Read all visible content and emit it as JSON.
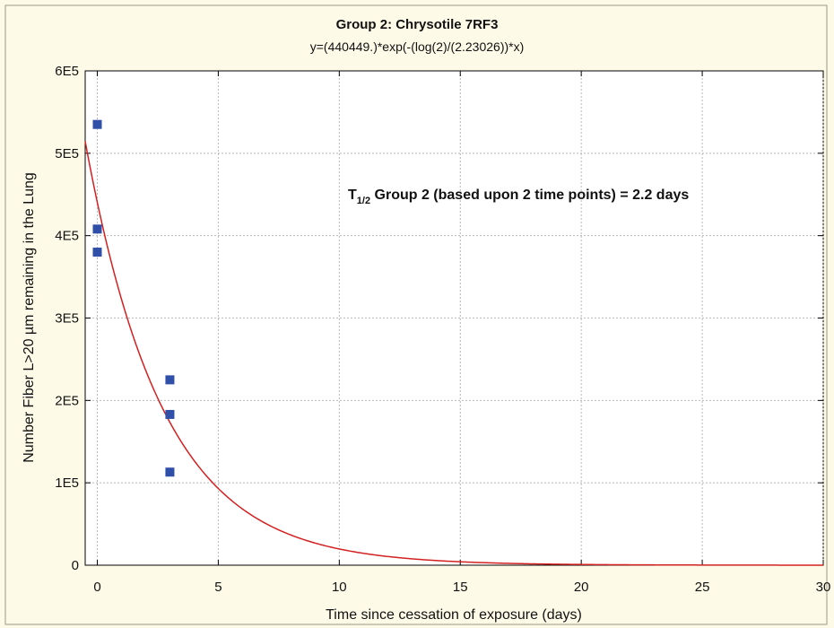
{
  "chart_data": {
    "type": "scatter",
    "title": "Group 2:  Chrysotile 7RF3",
    "subtitle": "y=(440449.)*exp(-(log(2)/(2.23026))*x)",
    "xlabel": "Time since cessation of exposure (days)",
    "ylabel": "Number Fiber L>20 µm remaining in the Lung",
    "xlim": [
      -0.5,
      30
    ],
    "ylim": [
      0,
      600000
    ],
    "x_ticks": [
      0,
      5,
      10,
      15,
      20,
      25,
      30
    ],
    "x_tick_labels": [
      "0",
      "5",
      "10",
      "15",
      "20",
      "25",
      "30"
    ],
    "y_ticks": [
      0,
      100000,
      200000,
      300000,
      400000,
      500000,
      600000
    ],
    "y_tick_labels": [
      "0",
      "1E5",
      "2E5",
      "3E5",
      "4E5",
      "5E5",
      "6E5"
    ],
    "grid": true,
    "series": [
      {
        "kind": "points",
        "color": "#2f4fa8",
        "x": [
          0,
          0,
          0,
          3,
          3,
          3
        ],
        "y": [
          535000,
          408000,
          380000,
          225000,
          183000,
          113000
        ]
      },
      {
        "kind": "fit-curve",
        "color": "#d42020",
        "a": 440449,
        "half_life": 2.23026,
        "x_range": [
          -0.5,
          30
        ]
      }
    ],
    "annotation": {
      "prefix": "T",
      "subscript": "1/2",
      "text": " Group 2 (based upon 2 time points) = 2.2 days"
    }
  }
}
